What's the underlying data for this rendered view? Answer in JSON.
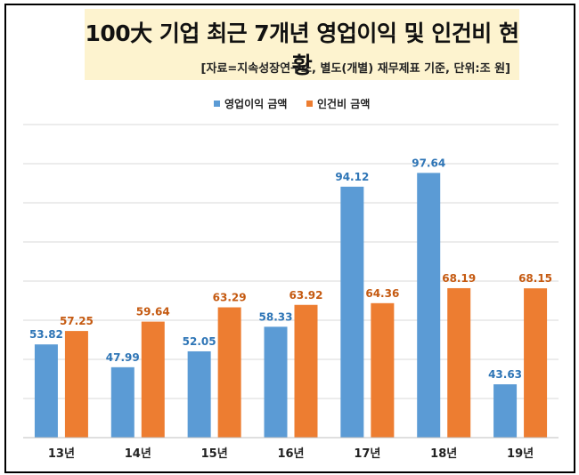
{
  "header": {
    "title": "100大 기업 최근 7개년 영업이익 및 인건비 현황",
    "source": "[자료=지속성장연구소, 별도(개별) 재무제표 기준, 단위:조 원]"
  },
  "chart_data": {
    "type": "bar",
    "title": "100大 기업 최근 7개년 영업이익 및 인건비 현황",
    "categories": [
      "13년",
      "14년",
      "15년",
      "16년",
      "17년",
      "18년",
      "19년"
    ],
    "series": [
      {
        "name": "영업이익 금액",
        "color": "#5b9bd5",
        "label_color": "#2e75b6",
        "values": [
          53.82,
          47.99,
          52.05,
          58.33,
          94.12,
          97.64,
          43.63
        ]
      },
      {
        "name": "인건비 금액",
        "color": "#ed7d31",
        "label_color": "#c55a11",
        "values": [
          57.25,
          59.64,
          63.29,
          63.92,
          64.36,
          68.19,
          68.15
        ]
      }
    ],
    "ylim": [
      30,
      110
    ],
    "grid": true,
    "legend": "top-center",
    "xlabel": "",
    "ylabel": ""
  }
}
